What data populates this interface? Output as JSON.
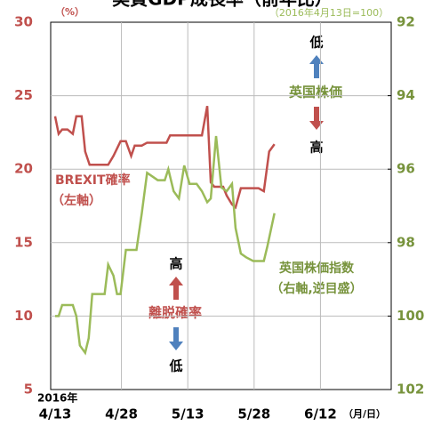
{
  "chart_data": {
    "type": "line",
    "title": "実質GDP成長率（前年比）",
    "y_unit": "（%）",
    "y2_note": "（2016年4月13日=100）",
    "x_year": "2016年",
    "x_unit": "（月/日）",
    "xlim": [
      -1,
      76
    ],
    "xticks": [
      {
        "value": 0,
        "label": "4/13"
      },
      {
        "value": 15,
        "label": "4/28"
      },
      {
        "value": 30,
        "label": "5/13"
      },
      {
        "value": 45,
        "label": "5/28"
      },
      {
        "value": 60,
        "label": "6/12"
      }
    ],
    "ylim": [
      5,
      30
    ],
    "yticks": [
      5,
      10,
      15,
      20,
      25,
      30
    ],
    "y2lim": [
      102,
      92
    ],
    "y2ticks": [
      92,
      94,
      96,
      98,
      100,
      102
    ],
    "grid": true,
    "series": [
      {
        "name": "BREXIT確率",
        "sub": "（左軸）",
        "color": "#c0504d",
        "x": [
          0,
          0.8,
          1.6,
          2.8,
          4,
          4.8,
          6,
          6.8,
          7.8,
          9.6,
          12,
          13.2,
          14.8,
          16,
          17.2,
          18,
          19.6,
          20.8,
          25.2,
          26,
          33.2,
          34.4,
          35.2,
          36,
          38,
          38.8,
          40,
          40.8,
          42,
          46,
          47.2,
          48.4,
          49.6
        ],
        "values": [
          23.6,
          22.4,
          22.7,
          22.7,
          22.4,
          23.6,
          23.6,
          21.2,
          20.3,
          20.3,
          20.3,
          20.9,
          21.9,
          21.9,
          20.9,
          21.6,
          21.6,
          21.8,
          21.8,
          22.3,
          22.3,
          24.3,
          19.1,
          18.8,
          18.8,
          18.2,
          17.6,
          17.4,
          18.7,
          18.7,
          18.5,
          21.2,
          21.7
        ]
      },
      {
        "name": "英国株価指数",
        "sub": "（右軸,逆目盛）",
        "color": "#9bbb59",
        "axis": "y2",
        "x": [
          0,
          0.8,
          1.6,
          4,
          4.8,
          5.6,
          6.8,
          7.6,
          8.4,
          9.6,
          11.2,
          12,
          13.2,
          14,
          14.8,
          16,
          18.4,
          19.6,
          20.8,
          22,
          23.2,
          24.8,
          25.6,
          26.8,
          28,
          29.2,
          30.4,
          32,
          33.2,
          34.4,
          35.2,
          36.4,
          37.6,
          38.8,
          40,
          40.8,
          42,
          43.2,
          44.8,
          47.2,
          48,
          49.6
        ],
        "values": [
          100.0,
          100.0,
          99.7,
          99.7,
          100.0,
          100.8,
          101.0,
          100.6,
          99.4,
          99.4,
          99.4,
          98.6,
          98.9,
          99.4,
          99.4,
          98.2,
          98.2,
          97.2,
          96.1,
          96.2,
          96.3,
          96.3,
          96.0,
          96.6,
          96.8,
          95.9,
          96.4,
          96.4,
          96.6,
          96.9,
          96.8,
          95.1,
          96.5,
          96.6,
          96.4,
          97.6,
          98.3,
          98.4,
          98.5,
          98.5,
          98.1,
          97.2
        ]
      }
    ],
    "annotations": {
      "stock_low": "低",
      "stock_label": "英国株価",
      "stock_high": "高",
      "prob_high": "高",
      "prob_label": "離脱確率",
      "prob_low": "低"
    }
  }
}
